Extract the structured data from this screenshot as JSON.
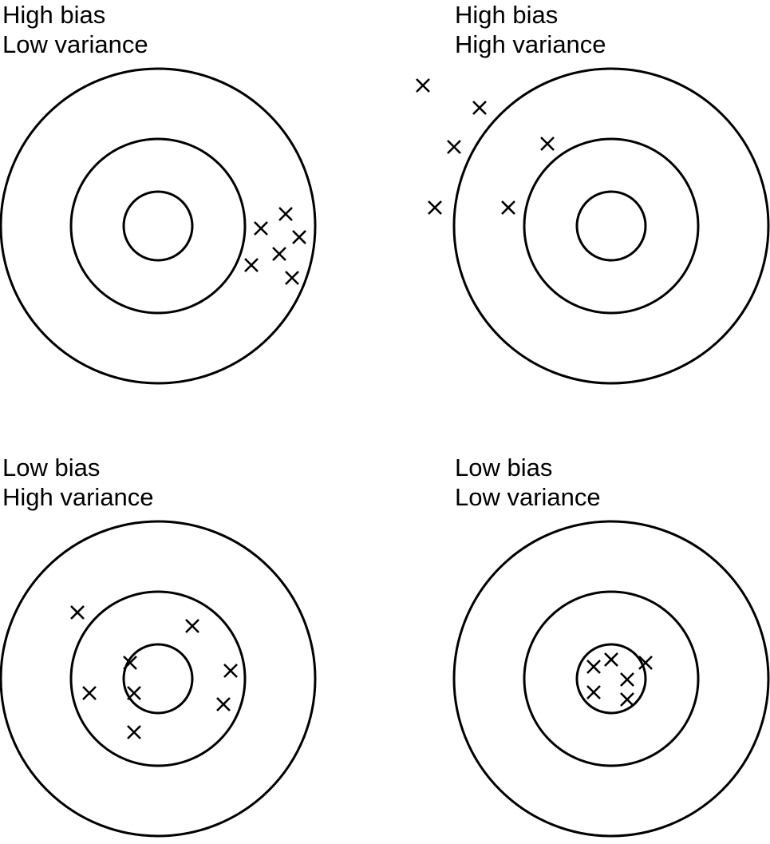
{
  "panels": [
    {
      "id": "high-bias-low-variance",
      "label_line1": "High bias",
      "label_line2": "Low variance"
    },
    {
      "id": "high-bias-high-variance",
      "label_line1": "High bias",
      "label_line2": "High variance"
    },
    {
      "id": "low-bias-high-variance",
      "label_line1": "Low bias",
      "label_line2": "High variance"
    },
    {
      "id": "low-bias-low-variance",
      "label_line1": "Low bias",
      "label_line2": "Low variance"
    }
  ]
}
